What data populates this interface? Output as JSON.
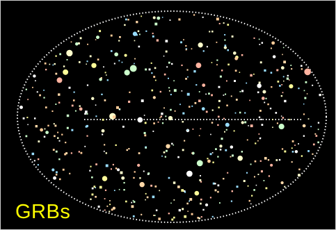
{
  "label": "GRBs"
}
